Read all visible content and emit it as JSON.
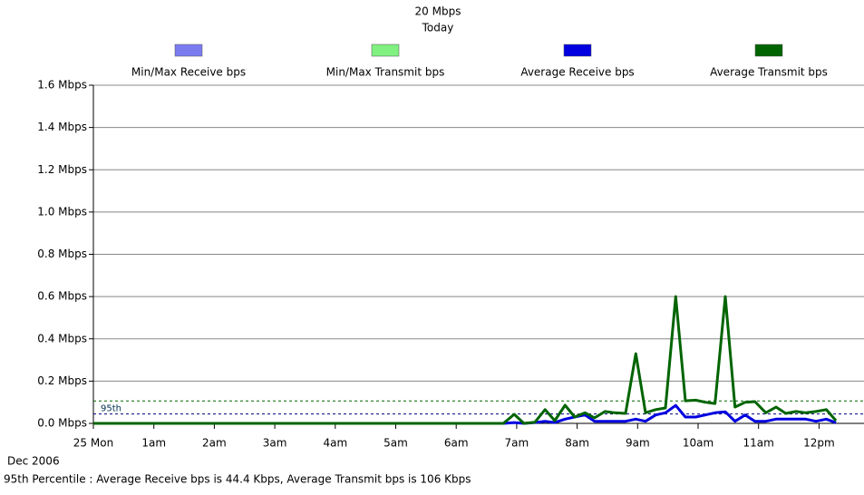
{
  "chart_data": {
    "type": "line",
    "subtitle": "20 Mbps",
    "period": "Today",
    "x": [
      0,
      6.78,
      6.96,
      7.12,
      7.3,
      7.47,
      7.63,
      7.8,
      7.96,
      8.13,
      8.29,
      8.46,
      8.62,
      8.8,
      8.97,
      9.13,
      9.3,
      9.46,
      9.63,
      9.79,
      9.96,
      10.12,
      10.28,
      10.45,
      10.61,
      10.78,
      10.94,
      11.12,
      11.29,
      11.45,
      11.62,
      11.78,
      11.95,
      12.12,
      12.28
    ],
    "series": [
      {
        "name": "Min/Max Receive bps",
        "color": "#7b7bf0",
        "values": [
          null,
          null,
          null,
          null,
          null,
          null,
          null,
          null,
          null,
          null,
          null,
          null,
          null,
          null,
          null,
          null,
          null,
          null,
          null,
          null,
          null,
          null,
          null,
          null,
          null,
          null,
          null,
          null,
          null,
          null,
          null,
          null,
          null,
          null,
          null
        ]
      },
      {
        "name": "Min/Max Transmit bps",
        "color": "#80f080",
        "values": [
          null,
          null,
          null,
          null,
          null,
          null,
          null,
          null,
          null,
          null,
          null,
          null,
          null,
          null,
          null,
          null,
          null,
          null,
          null,
          null,
          null,
          null,
          null,
          null,
          null,
          null,
          null,
          null,
          null,
          null,
          null,
          null,
          null,
          null,
          null
        ]
      },
      {
        "name": "Average Receive bps",
        "color": "#0000e0",
        "values": [
          0,
          0,
          0.004,
          0,
          0.004,
          0.01,
          0.004,
          0.02,
          0.03,
          0.04,
          0.01,
          0.01,
          0.01,
          0.01,
          0.02,
          0.01,
          0.04,
          0.05,
          0.085,
          0.03,
          0.03,
          0.04,
          0.05,
          0.055,
          0.01,
          0.04,
          0.01,
          0.01,
          0.02,
          0.02,
          0.02,
          0.02,
          0.01,
          0.02,
          0.003
        ]
      },
      {
        "name": "Average Transmit bps",
        "color": "#006400",
        "values": [
          0,
          0,
          0.043,
          0,
          0.005,
          0.065,
          0.013,
          0.086,
          0.03,
          0.05,
          0.026,
          0.056,
          0.05,
          0.047,
          0.33,
          0.05,
          0.065,
          0.073,
          0.6,
          0.107,
          0.11,
          0.1,
          0.094,
          0.6,
          0.077,
          0.1,
          0.103,
          0.05,
          0.077,
          0.047,
          0.056,
          0.05,
          0.056,
          0.065,
          0.013
        ]
      }
    ],
    "xlim": [
      0,
      12.75
    ],
    "xticks": [
      {
        "value": 0,
        "label": "25 Mon"
      },
      {
        "value": 1,
        "label": "1am"
      },
      {
        "value": 2,
        "label": "2am"
      },
      {
        "value": 3,
        "label": "3am"
      },
      {
        "value": 4,
        "label": "4am"
      },
      {
        "value": 5,
        "label": "5am"
      },
      {
        "value": 6,
        "label": "6am"
      },
      {
        "value": 7,
        "label": "7am"
      },
      {
        "value": 8,
        "label": "8am"
      },
      {
        "value": 9,
        "label": "9am"
      },
      {
        "value": 10,
        "label": "10am"
      },
      {
        "value": 11,
        "label": "11am"
      },
      {
        "value": 12,
        "label": "12pm"
      }
    ],
    "ylim": [
      0,
      1.6
    ],
    "yticks": [
      {
        "value": 0,
        "label": "0.0 Mbps"
      },
      {
        "value": 0.2,
        "label": "0.2 Mbps"
      },
      {
        "value": 0.4,
        "label": "0.4 Mbps"
      },
      {
        "value": 0.6,
        "label": "0.6 Mbps"
      },
      {
        "value": 0.8,
        "label": "0.8 Mbps"
      },
      {
        "value": 1.0,
        "label": "1.0 Mbps"
      },
      {
        "value": 1.2,
        "label": "1.2 Mbps"
      },
      {
        "value": 1.4,
        "label": "1.4 Mbps"
      },
      {
        "value": 1.6,
        "label": "1.6 Mbps"
      }
    ],
    "grid": true,
    "percentile_label": "95th",
    "percentiles": [
      {
        "value": 0.0444,
        "color": "#000080"
      },
      {
        "value": 0.106,
        "color": "#006400"
      }
    ],
    "date_label": "Dec 2006",
    "footer": "95th Percentile : Average Receive bps is 44.4 Kbps, Average Transmit bps is 106 Kbps"
  }
}
